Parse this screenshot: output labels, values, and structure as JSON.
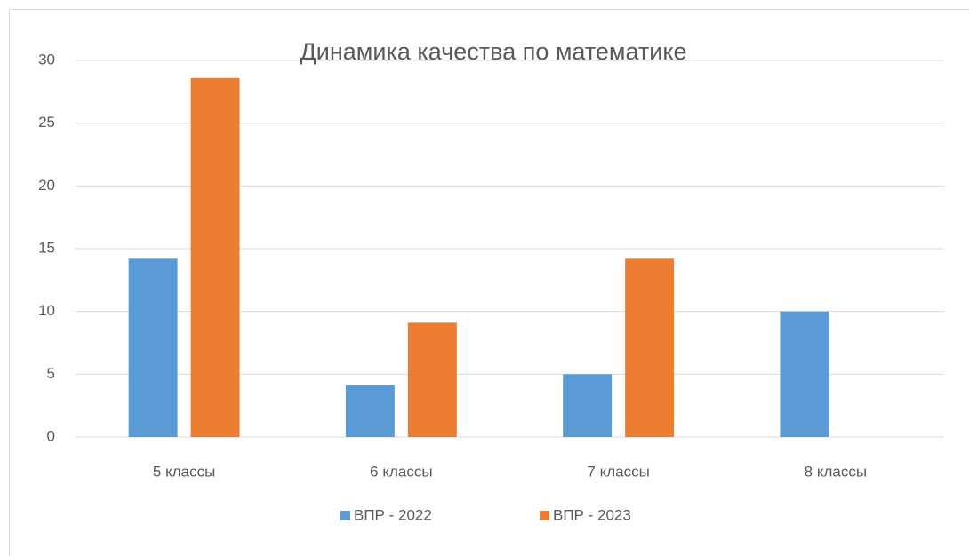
{
  "chart_data": {
    "type": "bar",
    "title": "Динамика качества по математике",
    "categories": [
      "5 классы",
      "6 классы",
      "7 классы",
      "8 классы"
    ],
    "series": [
      {
        "name": "ВПР - 2022",
        "color": "#5b9bd5",
        "values": [
          14.2,
          4.1,
          5.0,
          10
        ]
      },
      {
        "name": "ВПР - 2023",
        "color": "#ed7d31",
        "values": [
          28.6,
          9.1,
          14.2,
          0
        ]
      }
    ],
    "ylim": [
      0,
      30
    ],
    "yticks": [
      0,
      5,
      10,
      15,
      20,
      25,
      30
    ],
    "grid": true,
    "legend": "bottom"
  }
}
